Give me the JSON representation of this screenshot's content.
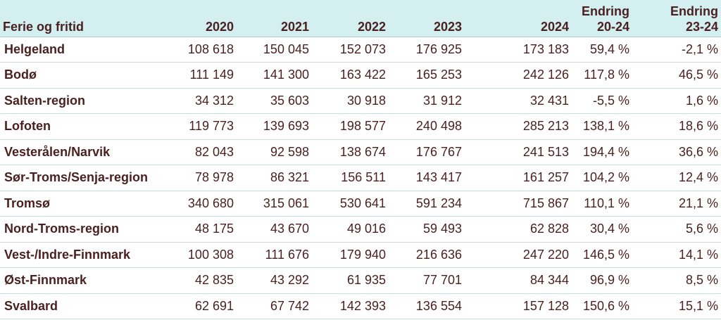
{
  "chart_data": {
    "type": "table",
    "columns": [
      "Ferie og fritid",
      "2020",
      "2021",
      "2022",
      "2023",
      "2024",
      "Endring 20-24",
      "Endring 23-24"
    ],
    "header": {
      "c0": "Ferie og fritid",
      "c1": "2020",
      "c2": "2021",
      "c3": "2022",
      "c4": "2023",
      "c5": "2024",
      "c6a": "Endring",
      "c6b": "20-24",
      "c7a": "Endring",
      "c7b": "23-24"
    },
    "rows": [
      [
        "Helgeland",
        "108 618",
        "150 045",
        "152 073",
        "176 925",
        "173 183",
        "59,4 %",
        "-2,1 %"
      ],
      [
        "Bodø",
        "111 149",
        "141 300",
        "163 422",
        "165 253",
        "242 126",
        "117,8 %",
        "46,5 %"
      ],
      [
        "Salten-region",
        "34 312",
        "35 603",
        "30 918",
        "31 912",
        "32 431",
        "-5,5 %",
        "1,6 %"
      ],
      [
        "Lofoten",
        "119 773",
        "139 693",
        "198 577",
        "240 498",
        "285 213",
        "138,1 %",
        "18,6 %"
      ],
      [
        "Vesterålen/Narvik",
        "82 043",
        "92 598",
        "138 674",
        "176 767",
        "241 513",
        "194,4 %",
        "36,6 %"
      ],
      [
        "Sør-Troms/Senja-region",
        "78 978",
        "86 321",
        "156 511",
        "143 417",
        "161 257",
        "104,2 %",
        "12,4 %"
      ],
      [
        "Tromsø",
        "340 680",
        "315 061",
        "530 641",
        "591 234",
        "715 867",
        "110,1 %",
        "21,1 %"
      ],
      [
        "Nord-Troms-region",
        "48 175",
        "43 670",
        "49 016",
        "59 493",
        "62 828",
        "30,4 %",
        "5,6 %"
      ],
      [
        "Vest-/Indre-Finnmark",
        "100 308",
        "111 676",
        "179 940",
        "216 636",
        "247 220",
        "146,5 %",
        "14,1 %"
      ],
      [
        "Øst-Finnmark",
        "42 835",
        "43 292",
        "61 935",
        "77 701",
        "84 344",
        "96,9 %",
        "8,5 %"
      ],
      [
        "Svalbard",
        "62 691",
        "67 742",
        "142 393",
        "136 554",
        "157 128",
        "150,6 %",
        "15,1 %"
      ]
    ]
  },
  "colors": {
    "header_bg": "#d4eff0",
    "text": "#4a1f1f",
    "rule": "#c2dfe0"
  }
}
